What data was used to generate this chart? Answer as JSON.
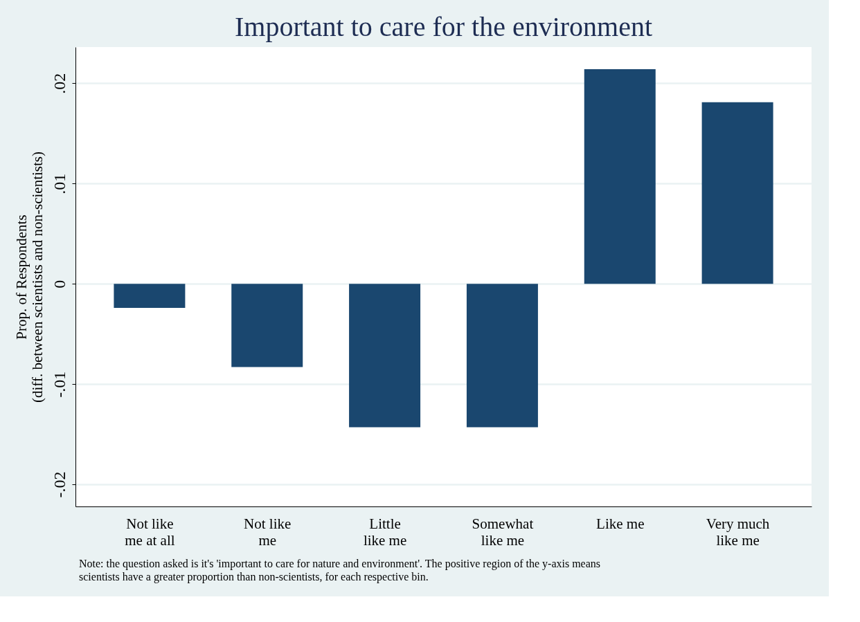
{
  "chart_data": {
    "type": "bar",
    "title": "Important to care for the environment",
    "ylabel": "Prop. of Respondents\n(diff. between scientists and non-scientists)",
    "categories": [
      "Not like\nme at all",
      "Not like\nme",
      "Little\nlike me",
      "Somewhat\nlike me",
      "Like me",
      "Very much\nlike me"
    ],
    "values": [
      -0.0024,
      -0.0083,
      -0.0143,
      -0.0143,
      0.0214,
      0.0181
    ],
    "color": "#1a476f",
    "ylim": [
      -0.0222,
      0.0236
    ],
    "yticks": [
      {
        "value": -0.02,
        "label": "-.02"
      },
      {
        "value": -0.01,
        "label": "-.01"
      },
      0,
      {
        "value": 0.01,
        "label": ".01"
      },
      {
        "value": 0.02,
        "label": ".02"
      }
    ],
    "grid": "y",
    "annotations": [
      "Note: the question asked is it's 'important to care for nature and environment'. The positive region of the y-axis means scientists have a greater proportion than non-scientists, for each respective bin."
    ]
  }
}
